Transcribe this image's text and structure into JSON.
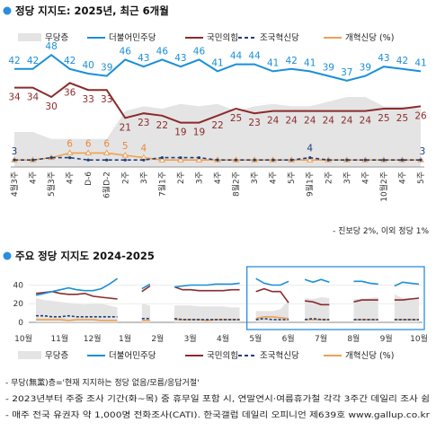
{
  "titles": {
    "top": "정당 지지도: 2025년, 최근 6개월",
    "bottom": "주요 정당 지지도 2024-2025"
  },
  "legend": [
    "무당층",
    "더불어민주당",
    "국민의힘",
    "조국혁신당",
    "개혁신당 (%)"
  ],
  "colors": {
    "dem": "#1a8fd8",
    "ppp": "#8b2b2b",
    "rebuild": "#1f3f7a",
    "reform": "#f0a050",
    "none": "#e4e4e4",
    "highlight": "#2a8ee0"
  },
  "chart_data": [
    {
      "type": "line",
      "title": "정당 지지도: 2025년, 최근 6개월",
      "categories": [
        "4월3주",
        "4주",
        "5월3주",
        "4주",
        "D-6",
        "6월D-2",
        "2주",
        "3주",
        "7월1주",
        "2주",
        "3주",
        "4주",
        "8월2주",
        "3주",
        "4주",
        "5주",
        "9월1주",
        "2주",
        "3주",
        "4주",
        "10월2주",
        "4주",
        "5주"
      ],
      "series": [
        {
          "name": "더불어민주당",
          "values": [
            42,
            42,
            48,
            42,
            40,
            39,
            46,
            43,
            46,
            43,
            46,
            41,
            44,
            44,
            41,
            42,
            41,
            39,
            37,
            39,
            43,
            42,
            41
          ]
        },
        {
          "name": "국민의힘",
          "values": [
            34,
            34,
            30,
            36,
            33,
            33,
            21,
            23,
            22,
            19,
            19,
            22,
            25,
            23,
            24,
            24,
            24,
            24,
            24,
            24,
            25,
            25,
            26
          ]
        },
        {
          "name": "조국혁신당",
          "values": [
            3,
            3,
            4,
            4,
            3,
            3,
            3,
            3,
            4,
            4,
            4,
            3,
            3,
            3,
            3,
            3,
            4,
            3,
            3,
            3,
            3,
            3,
            3
          ]
        },
        {
          "name": "개혁신당",
          "values": [
            3,
            3,
            4,
            6,
            6,
            6,
            5,
            4,
            3,
            3,
            3,
            3,
            3,
            3,
            3,
            3,
            3,
            3,
            3,
            3,
            3,
            3,
            3
          ]
        },
        {
          "name": "무당층",
          "values": [
            15,
            15,
            12,
            12,
            12,
            12,
            24,
            26,
            25,
            27,
            26,
            27,
            24,
            26,
            27,
            26,
            26,
            28,
            30,
            30,
            26,
            26,
            25
          ]
        }
      ],
      "labels": {
        "dem": [
          42,
          42,
          48,
          42,
          40,
          39,
          46,
          43,
          46,
          43,
          46,
          41,
          44,
          44,
          41,
          42,
          41,
          39,
          37,
          39,
          43,
          42,
          41
        ],
        "ppp": [
          34,
          34,
          30,
          36,
          33,
          33,
          21,
          23,
          22,
          19,
          19,
          22,
          25,
          23,
          24,
          24,
          24,
          24,
          24,
          24,
          25,
          25,
          26
        ],
        "reform": [
          6,
          6,
          6,
          5,
          4
        ],
        "rebuild": [
          4
        ],
        "small_first": "3",
        "small_last": "3"
      },
      "note": "- 진보당 2%, 이외 정당 1%"
    },
    {
      "type": "line",
      "title": "주요 정당 지지도 2024-2025",
      "y_ticks": [
        0,
        20,
        40
      ],
      "ylim": [
        0,
        52
      ],
      "x_tick_labels": [
        "10월",
        "11월",
        "12월",
        "1월",
        "2월",
        "3월",
        "4월",
        "5월",
        "6월",
        "7월",
        "8월",
        "9월",
        "10월"
      ],
      "series": [
        {
          "name": "더불어민주당",
          "values": [
            29,
            31,
            33,
            35,
            37,
            35,
            34,
            34,
            36,
            41,
            47,
            null,
            null,
            36,
            41,
            null,
            null,
            38,
            39,
            40,
            40,
            40,
            41,
            41,
            41,
            42,
            null,
            47,
            42,
            40,
            40,
            44,
            null,
            46,
            43,
            46,
            43,
            null,
            null,
            44,
            44,
            42,
            41,
            null,
            39,
            43,
            42,
            41
          ]
        },
        {
          "name": "국민의힘",
          "values": [
            31,
            32,
            33,
            31,
            30,
            30,
            31,
            28,
            27,
            26,
            25,
            null,
            null,
            33,
            39,
            null,
            null,
            38,
            35,
            35,
            34,
            34,
            34,
            34,
            35,
            35,
            null,
            33,
            36,
            33,
            33,
            21,
            null,
            23,
            22,
            19,
            19,
            null,
            null,
            22,
            24,
            24,
            24,
            null,
            24,
            24,
            25,
            26
          ]
        },
        {
          "name": "조국혁신당",
          "values": [
            7,
            7,
            6,
            6,
            7,
            6,
            6,
            6,
            6,
            6,
            6,
            null,
            null,
            4,
            4,
            null,
            null,
            4,
            3,
            3,
            3,
            3,
            3,
            3,
            3,
            3,
            null,
            3,
            4,
            3,
            3,
            3,
            null,
            3,
            4,
            3,
            3,
            null,
            null,
            3,
            3,
            3,
            3,
            null,
            3,
            3,
            3,
            3
          ]
        },
        {
          "name": "개혁신당",
          "values": [
            3,
            3,
            3,
            3,
            2,
            3,
            3,
            3,
            2,
            2,
            2,
            null,
            null,
            2,
            2,
            null,
            null,
            3,
            3,
            3,
            3,
            2,
            3,
            3,
            3,
            3,
            null,
            4,
            6,
            6,
            5,
            4,
            null,
            3,
            3,
            3,
            3,
            null,
            null,
            3,
            3,
            3,
            3,
            null,
            3,
            3,
            3,
            3
          ]
        },
        {
          "name": "무당층",
          "values": [
            26,
            24,
            23,
            22,
            21,
            20,
            19,
            20,
            20,
            18,
            16,
            null,
            null,
            20,
            18,
            null,
            null,
            18,
            18,
            18,
            17,
            17,
            17,
            17,
            16,
            16,
            null,
            12,
            12,
            12,
            14,
            24,
            null,
            26,
            25,
            27,
            26,
            null,
            null,
            25,
            25,
            26,
            27,
            null,
            30,
            26,
            26,
            25
          ]
        }
      ]
    }
  ],
  "notes": [
    "- 무당(無黨)층='현재 지지하는 정당 없음/모름/응답거절'",
    "- 2023년부터 주중 조사 기간(화~목) 중 휴무일 포함 시, 연말연시·여름휴가철 각각 3주간 데일리 조사 쉼",
    "- 매주 전국 유권자 약 1,000명 전화조사(CATI). 한국갤럽 데일리 오피니언 제639호 www.gallup.co.kr"
  ]
}
